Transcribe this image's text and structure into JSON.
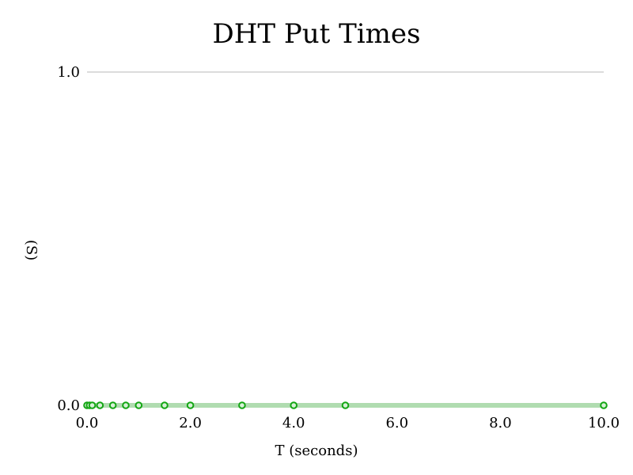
{
  "chart_data": {
    "type": "line",
    "title": "DHT Put Times",
    "xlabel": "T (seconds)",
    "ylabel": "(S)",
    "xlim": [
      0,
      10
    ],
    "ylim": [
      0,
      1
    ],
    "x_ticks": [
      "0.0",
      "2.0",
      "4.0",
      "6.0",
      "8.0",
      "10.0"
    ],
    "y_ticks": [
      "0.0",
      "1.0"
    ],
    "grid": "horizontal",
    "series": [
      {
        "color": "#13a613",
        "line_color": "#b0dcb0",
        "points": [
          {
            "x": 0.0,
            "y": 0
          },
          {
            "x": 0.05,
            "y": 0
          },
          {
            "x": 0.1,
            "y": 0
          },
          {
            "x": 0.25,
            "y": 0
          },
          {
            "x": 0.5,
            "y": 0
          },
          {
            "x": 0.75,
            "y": 0
          },
          {
            "x": 1.0,
            "y": 0
          },
          {
            "x": 1.5,
            "y": 0
          },
          {
            "x": 2.0,
            "y": 0
          },
          {
            "x": 3.0,
            "y": 0
          },
          {
            "x": 4.0,
            "y": 0
          },
          {
            "x": 5.0,
            "y": 0
          },
          {
            "x": 10.0,
            "y": 0
          }
        ]
      }
    ]
  }
}
